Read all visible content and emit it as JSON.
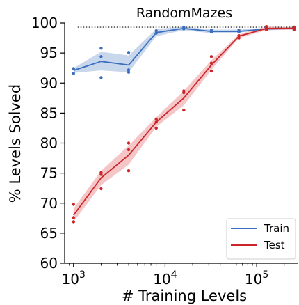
{
  "chart_data": {
    "type": "line",
    "title": "RandomMazes",
    "xlabel": "# Training Levels",
    "ylabel": "% Levels Solved",
    "xscale": "log",
    "xlim": [
      800,
      280000
    ],
    "ylim": [
      60,
      100
    ],
    "x_ticks": [
      {
        "value": 1000,
        "base": "10",
        "exp": "3"
      },
      {
        "value": 10000,
        "base": "10",
        "exp": "4"
      },
      {
        "value": 100000,
        "base": "10",
        "exp": "5"
      }
    ],
    "y_ticks": [
      60,
      65,
      70,
      75,
      80,
      85,
      90,
      95,
      100
    ],
    "reference_line": {
      "y": 99.3,
      "style": "dotted",
      "color": "#333333"
    },
    "legend_position": "bottom-right",
    "grid": false,
    "series": [
      {
        "name": "Train",
        "color": "#3a6fbf",
        "band_color": "#b7c9e6",
        "x": [
          1000,
          2000,
          4000,
          8000,
          16000,
          32000,
          64000,
          128000,
          256000
        ],
        "mean": [
          92.1,
          93.6,
          93.0,
          98.4,
          99.1,
          98.6,
          98.6,
          99.0,
          99.1
        ],
        "lower": [
          91.7,
          92.1,
          91.8,
          97.8,
          98.8,
          98.3,
          98.4,
          98.8,
          98.9
        ],
        "upper": [
          92.5,
          95.2,
          94.6,
          99.0,
          99.4,
          98.9,
          98.9,
          99.2,
          99.3
        ],
        "points": [
          [
            1000,
            91.6
          ],
          [
            1000,
            92.4
          ],
          [
            2000,
            90.9
          ],
          [
            2000,
            94.4
          ],
          [
            2000,
            95.8
          ],
          [
            4000,
            91.8
          ],
          [
            4000,
            92.2
          ],
          [
            4000,
            95.1
          ],
          [
            8000,
            98.3
          ],
          [
            8000,
            98.7
          ],
          [
            16000,
            99.0
          ],
          [
            16000,
            99.3
          ],
          [
            32000,
            98.5
          ],
          [
            32000,
            98.8
          ],
          [
            64000,
            98.5
          ],
          [
            64000,
            98.8
          ],
          [
            128000,
            98.9
          ],
          [
            128000,
            99.2
          ],
          [
            256000,
            98.9
          ],
          [
            256000,
            99.2
          ]
        ]
      },
      {
        "name": "Test",
        "color": "#cc2529",
        "band_color": "#f1b3b6",
        "x": [
          1000,
          2000,
          4000,
          8000,
          16000,
          32000,
          64000,
          128000,
          256000
        ],
        "mean": [
          68.0,
          74.2,
          78.0,
          83.5,
          87.5,
          93.0,
          97.8,
          99.1,
          99.1
        ],
        "lower": [
          66.9,
          73.0,
          76.4,
          82.7,
          86.3,
          92.2,
          97.5,
          98.8,
          98.9
        ],
        "upper": [
          69.1,
          75.4,
          79.6,
          84.3,
          88.7,
          93.8,
          98.1,
          99.4,
          99.3
        ],
        "points": [
          [
            1000,
            66.9
          ],
          [
            1000,
            67.6
          ],
          [
            1000,
            69.8
          ],
          [
            2000,
            72.4
          ],
          [
            2000,
            74.8
          ],
          [
            2000,
            75.1
          ],
          [
            4000,
            75.4
          ],
          [
            4000,
            78.9
          ],
          [
            4000,
            80.0
          ],
          [
            8000,
            82.5
          ],
          [
            8000,
            83.5
          ],
          [
            8000,
            84.0
          ],
          [
            16000,
            85.5
          ],
          [
            16000,
            88.4
          ],
          [
            16000,
            88.7
          ],
          [
            32000,
            92.0
          ],
          [
            32000,
            93.3
          ],
          [
            32000,
            94.4
          ],
          [
            64000,
            97.5
          ],
          [
            64000,
            97.9
          ],
          [
            128000,
            98.9
          ],
          [
            128000,
            99.4
          ],
          [
            256000,
            98.9
          ],
          [
            256000,
            99.3
          ]
        ]
      }
    ]
  }
}
